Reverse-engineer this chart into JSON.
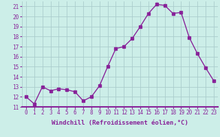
{
  "x": [
    0,
    1,
    2,
    3,
    4,
    5,
    6,
    7,
    8,
    9,
    10,
    11,
    12,
    13,
    14,
    15,
    16,
    17,
    18,
    19,
    20,
    21,
    22,
    23
  ],
  "y": [
    12.0,
    11.3,
    13.0,
    12.6,
    12.8,
    12.7,
    12.5,
    11.6,
    12.0,
    13.1,
    15.0,
    16.8,
    17.0,
    17.8,
    19.0,
    20.3,
    21.2,
    21.1,
    20.3,
    20.4,
    17.9,
    16.3,
    14.9,
    13.6
  ],
  "line_color": "#882299",
  "marker": "s",
  "markersize": 2.5,
  "linewidth": 1.0,
  "xlabel": "Windchill (Refroidissement éolien,°C)",
  "xlabel_fontsize": 6.5,
  "ylabel_ticks": [
    11,
    12,
    13,
    14,
    15,
    16,
    17,
    18,
    19,
    20,
    21
  ],
  "xtick_labels": [
    "0",
    "1",
    "2",
    "3",
    "4",
    "5",
    "6",
    "7",
    "8",
    "9",
    "10",
    "11",
    "12",
    "13",
    "14",
    "15",
    "16",
    "17",
    "18",
    "19",
    "20",
    "21",
    "22",
    "23"
  ],
  "xlim": [
    -0.5,
    23.5
  ],
  "ylim": [
    11,
    21.5
  ],
  "bg_color": "#cceee8",
  "grid_color": "#aacccc",
  "tick_fontsize": 5.5
}
